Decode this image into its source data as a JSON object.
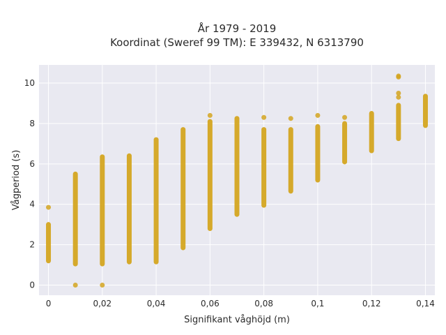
{
  "chart_data": {
    "type": "scatter",
    "title": "År 1979 - 2019",
    "subtitle": "Koordinat (Sweref 99 TM): E 339432, N 6313790",
    "xlabel": "Signifikant våghöjd (m)",
    "ylabel": "Vågperiod (s)",
    "xlim": [
      -0.0035,
      0.1435
    ],
    "ylim": [
      -0.5,
      10.9
    ],
    "x_ticks": [
      0,
      0.02,
      0.04,
      0.06,
      0.08,
      0.1,
      0.12,
      0.14
    ],
    "x_tick_labels": [
      "0",
      "0,02",
      "0,04",
      "0,06",
      "0,08",
      "0,1",
      "0,12",
      "0,14"
    ],
    "y_ticks": [
      0,
      2,
      4,
      6,
      8,
      10
    ],
    "y_tick_labels": [
      "0",
      "2",
      "4",
      "6",
      "8",
      "10"
    ],
    "grid": true,
    "marker_color": "#d4a520",
    "plot_bg": "#e9e9f1",
    "series": [
      {
        "points": [
          {
            "x": 0,
            "ymin": 1.2,
            "ymax": 3.0,
            "extra": [
              3.85
            ]
          },
          {
            "x": 0.01,
            "ymin": 1.05,
            "ymax": 5.5,
            "extra": [
              0.0
            ]
          },
          {
            "x": 0.02,
            "ymin": 1.05,
            "ymax": 6.35,
            "extra": [
              0.0
            ]
          },
          {
            "x": 0.03,
            "ymin": 1.15,
            "ymax": 6.4,
            "extra": []
          },
          {
            "x": 0.04,
            "ymin": 1.15,
            "ymax": 7.2,
            "extra": []
          },
          {
            "x": 0.05,
            "ymin": 1.85,
            "ymax": 7.7,
            "extra": []
          },
          {
            "x": 0.06,
            "ymin": 2.8,
            "ymax": 8.1,
            "extra": [
              8.4
            ]
          },
          {
            "x": 0.07,
            "ymin": 3.5,
            "ymax": 8.25,
            "extra": []
          },
          {
            "x": 0.08,
            "ymin": 3.95,
            "ymax": 7.7,
            "extra": [
              8.3
            ]
          },
          {
            "x": 0.09,
            "ymin": 4.65,
            "ymax": 7.7,
            "extra": [
              8.25
            ]
          },
          {
            "x": 0.1,
            "ymin": 5.2,
            "ymax": 7.85,
            "extra": [
              8.4
            ]
          },
          {
            "x": 0.11,
            "ymin": 6.1,
            "ymax": 8.0,
            "extra": [
              8.3
            ]
          },
          {
            "x": 0.12,
            "ymin": 6.65,
            "ymax": 8.5,
            "extra": []
          },
          {
            "x": 0.13,
            "ymin": 7.25,
            "ymax": 8.9,
            "extra": [
              9.3,
              9.5,
              10.3,
              10.35
            ]
          },
          {
            "x": 0.14,
            "ymin": 7.9,
            "ymax": 9.35,
            "extra": []
          }
        ]
      }
    ]
  }
}
